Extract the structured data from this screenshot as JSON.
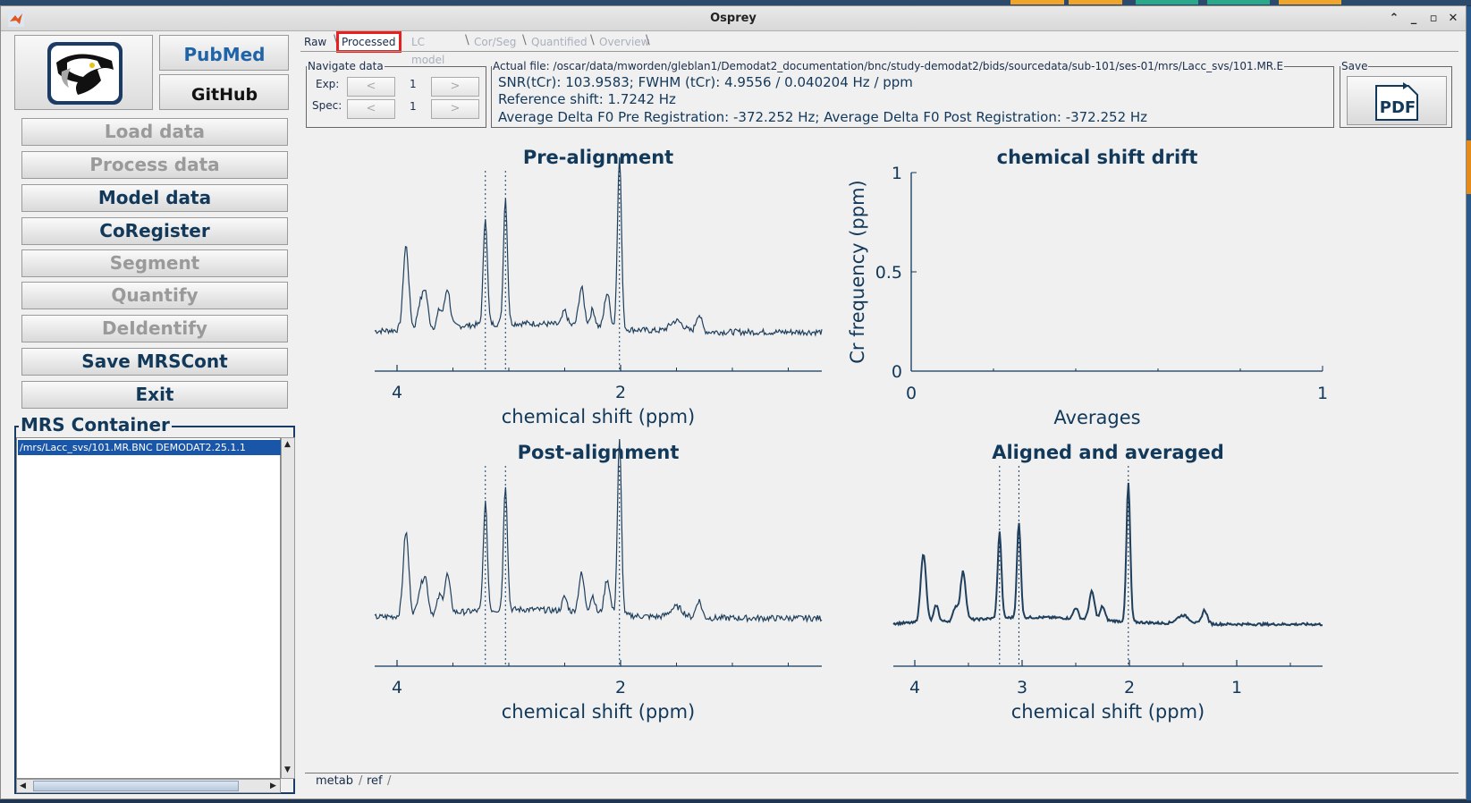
{
  "window": {
    "title": "Osprey"
  },
  "logos": {
    "pubmed": "PubMed",
    "github": "GitHub"
  },
  "sidebar": {
    "buttons": [
      {
        "label": "Load data",
        "enabled": false
      },
      {
        "label": "Process data",
        "enabled": false
      },
      {
        "label": "Model data",
        "enabled": true
      },
      {
        "label": "CoRegister",
        "enabled": true
      },
      {
        "label": "Segment",
        "enabled": false
      },
      {
        "label": "Quantify",
        "enabled": false
      },
      {
        "label": "DeIdentify",
        "enabled": false
      },
      {
        "label": "Save MRSCont",
        "enabled": true
      },
      {
        "label": "Exit",
        "enabled": true
      }
    ],
    "container_title": "MRS Container",
    "container_item": "/mrs/Lacc_svs/101.MR.BNC DEMODAT2.25.1.1"
  },
  "tabs": [
    {
      "label": "Raw",
      "state": "active"
    },
    {
      "label": "Processed",
      "state": "selected"
    },
    {
      "label": "LC model",
      "state": "disabled"
    },
    {
      "label": "Cor/Seg",
      "state": "disabled"
    },
    {
      "label": "Quantified",
      "state": "disabled"
    },
    {
      "label": "Overview",
      "state": "disabled"
    }
  ],
  "navigate": {
    "title": "Navigate data",
    "exp_label": "Exp:",
    "spec_label": "Spec:",
    "exp_value": "1",
    "spec_value": "1",
    "prev": "<",
    "next": ">"
  },
  "info": {
    "file": "Actual file: /oscar/data/mworden/gleblan1/Demodat2_documentation/bnc/study-demodat2/bids/sourcedata/sub-101/ses-01/mrs/Lacc_svs/101.MR.E",
    "snr": "SNR(tCr): 103.9583; FWHM (tCr): 4.9556 / 0.040204 Hz / ppm",
    "refshift": "Reference shift: 1.7242 Hz",
    "deltaf0": "Average Delta F0 Pre Registration: -372.252 Hz; Average Delta F0 Post Registration: -372.252 Hz"
  },
  "save": {
    "title": "Save",
    "pdf_label": "PDF"
  },
  "bottom_tabs": [
    "metab",
    "ref"
  ],
  "colors": {
    "navy": "#12385a",
    "plot_line": "#1f3f5c",
    "selected_tab_outline": "#e8211e",
    "list_select": "#1a56a8"
  },
  "chart_data": [
    {
      "type": "line",
      "title": "Pre-alignment",
      "xlabel": "chemical shift (ppm)",
      "xticks": [
        "4",
        "2"
      ],
      "x_reversed": true,
      "xlim": [
        4.2,
        0.2
      ],
      "vlines_ppm": [
        3.21,
        3.03,
        2.01
      ],
      "peaks_ppm": [
        {
          "x": 3.92,
          "h": 0.48
        },
        {
          "x": 3.75,
          "h": 0.22
        },
        {
          "x": 3.55,
          "h": 0.22
        },
        {
          "x": 3.21,
          "h": 0.62
        },
        {
          "x": 3.03,
          "h": 0.72
        },
        {
          "x": 2.35,
          "h": 0.22
        },
        {
          "x": 2.12,
          "h": 0.2
        },
        {
          "x": 2.01,
          "h": 1.0
        },
        {
          "x": 1.3,
          "h": 0.1
        }
      ]
    },
    {
      "type": "line",
      "title": "chemical shift drift",
      "xlabel": "Averages",
      "ylabel": "Cr frequency (ppm)",
      "xlim": [
        0,
        1
      ],
      "ylim": [
        0,
        1
      ],
      "xticks": [
        "0",
        "1"
      ],
      "yticks": [
        "0",
        "0.5",
        "1"
      ],
      "series": []
    },
    {
      "type": "line",
      "title": "Post-alignment",
      "xlabel": "chemical shift (ppm)",
      "xticks": [
        "4",
        "2"
      ],
      "x_reversed": true,
      "xlim": [
        4.2,
        0.2
      ],
      "vlines_ppm": [
        3.21,
        3.03,
        2.01
      ],
      "peaks_ppm": [
        {
          "x": 3.92,
          "h": 0.48
        },
        {
          "x": 3.75,
          "h": 0.22
        },
        {
          "x": 3.55,
          "h": 0.22
        },
        {
          "x": 3.21,
          "h": 0.62
        },
        {
          "x": 3.03,
          "h": 0.72
        },
        {
          "x": 2.35,
          "h": 0.22
        },
        {
          "x": 2.12,
          "h": 0.2
        },
        {
          "x": 2.01,
          "h": 1.0
        },
        {
          "x": 1.3,
          "h": 0.1
        }
      ]
    },
    {
      "type": "line",
      "title": "Aligned and averaged",
      "xlabel": "chemical shift (ppm)",
      "xticks": [
        "4",
        "3",
        "2",
        "1"
      ],
      "x_reversed": true,
      "xlim": [
        4.2,
        0.2
      ],
      "vlines_ppm": [
        3.21,
        3.03,
        2.01
      ],
      "peaks_ppm": [
        {
          "x": 3.92,
          "h": 0.5
        },
        {
          "x": 3.55,
          "h": 0.35
        },
        {
          "x": 3.21,
          "h": 0.62
        },
        {
          "x": 3.03,
          "h": 0.68
        },
        {
          "x": 2.35,
          "h": 0.2
        },
        {
          "x": 2.01,
          "h": 1.0
        },
        {
          "x": 1.3,
          "h": 0.1
        }
      ]
    }
  ]
}
